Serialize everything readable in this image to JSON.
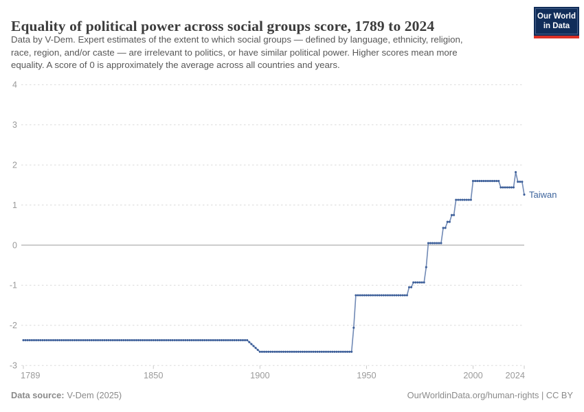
{
  "header": {
    "title": "Equality of political power across social groups score, 1789 to 2024",
    "subtitle_lines": [
      "Data by V-Dem. Expert estimates of the extent to which social groups — defined by language, ethnicity, religion,",
      "race, region, and/or caste — are irrelevant to politics, or have similar political power. Higher scores mean more",
      "equality. A score of 0 is approximately the average across all countries and years."
    ],
    "logo": {
      "line1": "Our World",
      "line2": "in Data"
    }
  },
  "chart_data": {
    "type": "line",
    "title": "Equality of political power across social groups score, 1789 to 2024",
    "entity_label": "Taiwan",
    "x": {
      "min": 1789,
      "max": 2024,
      "ticks": [
        1789,
        1850,
        1900,
        1950,
        2000,
        2024
      ]
    },
    "y": {
      "min": -3,
      "max": 4,
      "ticks": [
        4,
        3,
        2,
        1,
        0,
        -1,
        -2,
        -3
      ],
      "zero_line": true
    },
    "grid": "horizontal-dashed",
    "legend_position": "end-of-line-label",
    "series": [
      {
        "name": "Taiwan",
        "color": "#3d5f99",
        "breakpoints": [
          [
            1789,
            -2.37
          ],
          [
            1894,
            -2.37
          ],
          [
            1900,
            -2.66
          ],
          [
            1943,
            -2.66
          ],
          [
            1944,
            -2.06
          ],
          [
            1945,
            -1.25
          ],
          [
            1969,
            -1.25
          ],
          [
            1970,
            -1.05
          ],
          [
            1971,
            -1.05
          ],
          [
            1972,
            -0.93
          ],
          [
            1977,
            -0.93
          ],
          [
            1978,
            -0.55
          ],
          [
            1979,
            0.05
          ],
          [
            1985,
            0.05
          ],
          [
            1986,
            0.43
          ],
          [
            1987,
            0.43
          ],
          [
            1988,
            0.58
          ],
          [
            1989,
            0.58
          ],
          [
            1990,
            0.75
          ],
          [
            1991,
            0.75
          ],
          [
            1992,
            1.13
          ],
          [
            1999,
            1.13
          ],
          [
            2000,
            1.6
          ],
          [
            2012,
            1.6
          ],
          [
            2013,
            1.44
          ],
          [
            2019,
            1.44
          ],
          [
            2020,
            1.82
          ],
          [
            2021,
            1.58
          ],
          [
            2023,
            1.58
          ],
          [
            2024,
            1.26
          ]
        ]
      }
    ]
  },
  "footer": {
    "source_label": "Data source:",
    "source_value": "V-Dem (2025)",
    "credit": "OurWorldinData.org/human-rights | CC BY"
  },
  "colors": {
    "marker": "#3d5f99",
    "line": "#7089b5",
    "entity_label": "#3d649c",
    "grid": "#dadada",
    "zero_line": "#9b9b9b",
    "axis_tick": "#c9c9c9",
    "axis_text": "#9a9a9a"
  }
}
